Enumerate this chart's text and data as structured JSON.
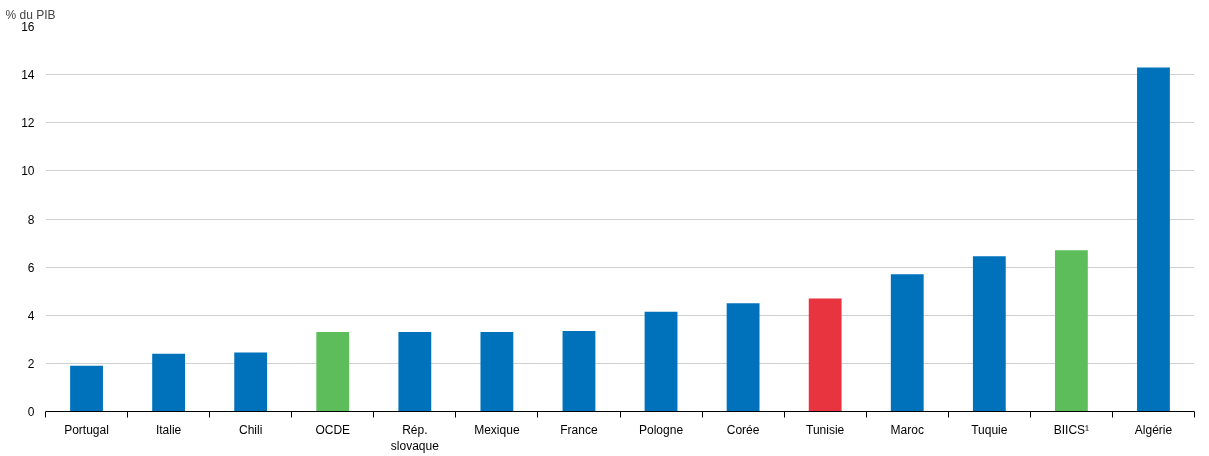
{
  "chart_data": {
    "type": "bar",
    "ylabel": "% du PIB",
    "categories": [
      "Portugal",
      "Italie",
      "Chili",
      "OCDE",
      "Rép. slovaque",
      "Mexique",
      "France",
      "Pologne",
      "Corée",
      "Tunisie",
      "Maroc",
      "Tuquie",
      "BIICS¹",
      "Algérie"
    ],
    "values": [
      1.9,
      2.4,
      2.45,
      3.3,
      3.3,
      3.3,
      3.35,
      4.15,
      4.5,
      4.7,
      5.7,
      6.45,
      6.7,
      14.3
    ],
    "colors": [
      "#0072bc",
      "#0072bc",
      "#0072bc",
      "#5cbd5a",
      "#0072bc",
      "#0072bc",
      "#0072bc",
      "#0072bc",
      "#0072bc",
      "#e8343f",
      "#0072bc",
      "#0072bc",
      "#5cbd5a",
      "#0072bc"
    ],
    "ylim": [
      0,
      16
    ],
    "yticks": [
      0,
      2,
      4,
      6,
      8,
      10,
      12,
      14,
      16
    ],
    "grid": "y"
  }
}
